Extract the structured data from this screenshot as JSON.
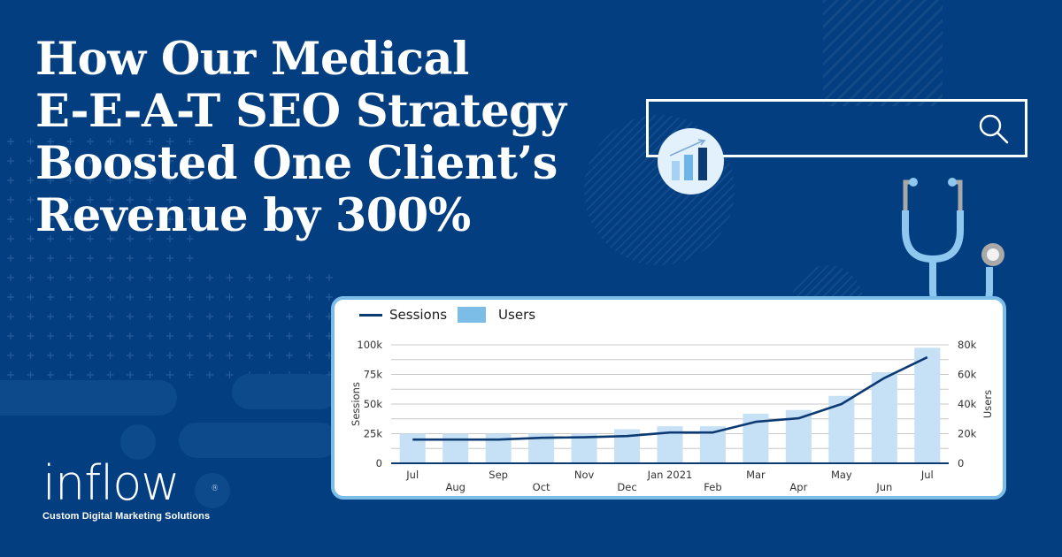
{
  "headline": {
    "lines": [
      "How Our Medical",
      "E-E-A-T SEO Strategy",
      "Boosted One Client’s",
      "Revenue by 300%"
    ]
  },
  "logo": {
    "wordmark": "inflow",
    "registered": "®",
    "tagline": "Custom Digital Marketing Solutions"
  },
  "search": {
    "icon": "search-icon",
    "value": ""
  },
  "badge": {
    "icon": "bar-chart-growth-icon"
  },
  "decoration": {
    "icon": "stethoscope-icon"
  },
  "colors": {
    "background": "#033e80",
    "card_border": "#7cbde8",
    "sessions_line": "#0c3a73",
    "users_bar": "#c6e1f6",
    "legend_users": "#7cbde8",
    "headline": "#ffffff"
  },
  "chart_data": {
    "type": "bar",
    "title": "",
    "categories": [
      "Jul",
      "Aug",
      "Sep",
      "Oct",
      "Nov",
      "Dec",
      "Jan 2021",
      "Feb",
      "Mar",
      "Apr",
      "May",
      "Jun",
      "Jul"
    ],
    "series": [
      {
        "name": "Sessions",
        "type": "line",
        "axis": "left",
        "values": [
          20000,
          20000,
          20000,
          21500,
          22000,
          23000,
          26000,
          26000,
          35000,
          38000,
          50000,
          72000,
          89500
        ]
      },
      {
        "name": "Users",
        "type": "bar",
        "axis": "right",
        "values": [
          20000,
          20000,
          20000,
          20000,
          20000,
          23000,
          25000,
          25000,
          33500,
          36000,
          45500,
          61500,
          78000
        ]
      }
    ],
    "legend": [
      "Sessions",
      "Users"
    ],
    "legend_position": "top-left",
    "ylabel": "Sessions",
    "ylabel_right": "Users",
    "xlabel": "",
    "ylim": [
      0,
      100000
    ],
    "ylim_right": [
      0,
      80000
    ],
    "yticks": [
      "0",
      "25k",
      "50k",
      "75k",
      "100k"
    ],
    "yticks_right": [
      "0",
      "20k",
      "40k",
      "60k",
      "80k"
    ],
    "grid": true
  }
}
